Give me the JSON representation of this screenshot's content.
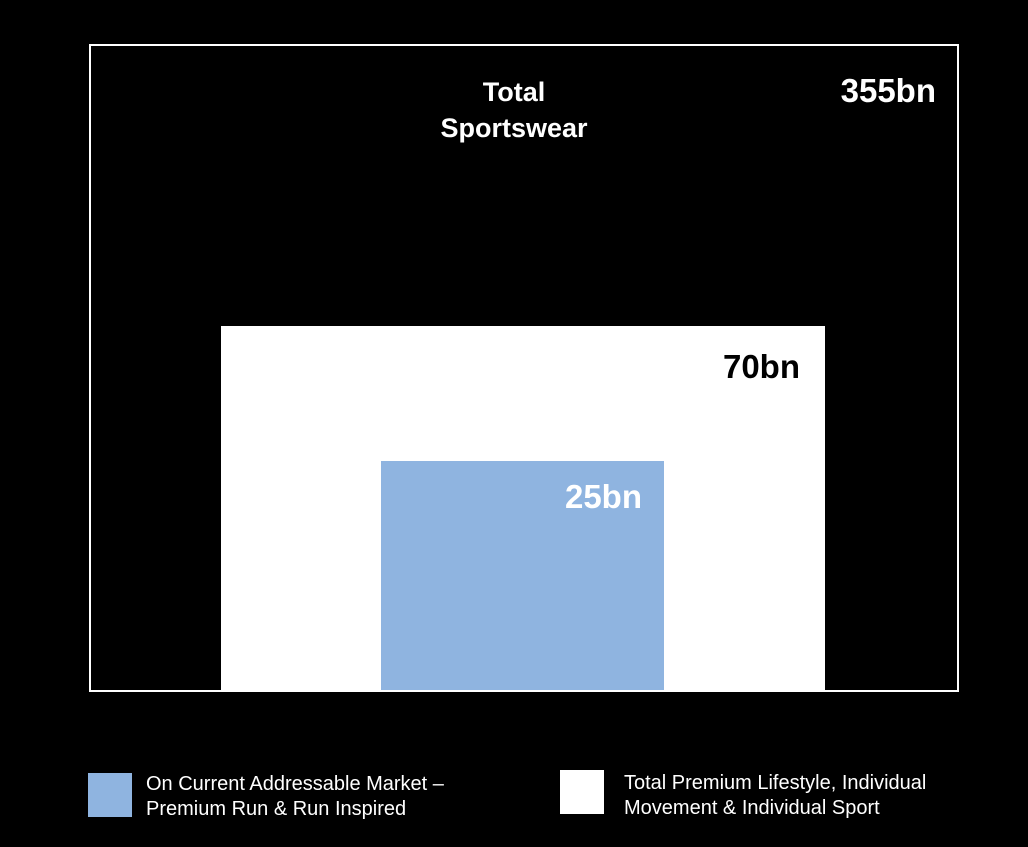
{
  "chart_data": {
    "type": "nested-area",
    "title": "",
    "series": [
      {
        "name": "Total Sportswear",
        "value": 355,
        "label": "355bn",
        "color": "#000000"
      },
      {
        "name": "Total Premium Lifestyle, Individual Movement & Individual Sport",
        "value": 70,
        "label": "70bn",
        "color": "#ffffff"
      },
      {
        "name": "On Current Addressable Market – Premium Run & Run Inspired",
        "value": 25,
        "label": "25bn",
        "color": "#8fb4e0"
      }
    ],
    "unit": "bn"
  },
  "labels": {
    "total_title_line1": "Total",
    "total_title_line2": "Sportswear",
    "total_value": "355bn",
    "premium_value": "70bn",
    "addressable_value": "25bn"
  },
  "legend": {
    "item1_line1": "On Current Addressable Market –",
    "item1_line2": "Premium Run & Run Inspired",
    "item1_color": "#8fb4e0",
    "item2_line1": "Total Premium Lifestyle, Individual",
    "item2_line2": "Movement & Individual Sport",
    "item2_color": "#ffffff"
  }
}
